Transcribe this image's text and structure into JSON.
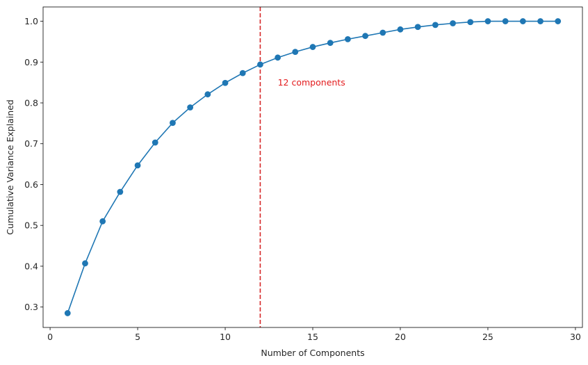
{
  "chart_data": {
    "type": "line",
    "title": "",
    "xlabel": "Number of Components",
    "ylabel": "Cumulative Variance Explained",
    "xlim": [
      -0.4,
      30.4
    ],
    "ylim": [
      0.25,
      1.035
    ],
    "xticks": [
      0,
      5,
      10,
      15,
      20,
      25,
      30
    ],
    "yticks": [
      0.3,
      0.4,
      0.5,
      0.6,
      0.7,
      0.8,
      0.9,
      1.0
    ],
    "xtick_labels": [
      "0",
      "5",
      "10",
      "15",
      "20",
      "25",
      "30"
    ],
    "ytick_labels": [
      "0.3",
      "0.4",
      "0.5",
      "0.6",
      "0.7",
      "0.8",
      "0.9",
      "1.0"
    ],
    "grid": false,
    "series": [
      {
        "color": "#1f77b4",
        "marker": "circle",
        "x": [
          1,
          2,
          3,
          4,
          5,
          6,
          7,
          8,
          9,
          10,
          11,
          12,
          13,
          14,
          15,
          16,
          17,
          18,
          19,
          20,
          21,
          22,
          23,
          24,
          25,
          26,
          27,
          28,
          29
        ],
        "y": [
          0.285,
          0.407,
          0.51,
          0.582,
          0.647,
          0.703,
          0.751,
          0.789,
          0.821,
          0.849,
          0.873,
          0.894,
          0.911,
          0.925,
          0.937,
          0.947,
          0.956,
          0.964,
          0.972,
          0.98,
          0.986,
          0.991,
          0.995,
          0.998,
          1.0,
          1.0,
          1.0,
          1.0,
          1.0
        ]
      }
    ],
    "vline": {
      "x": 12,
      "color": "#d62728",
      "style": "dashed"
    },
    "annotation": {
      "text": "12 components",
      "x": 13,
      "y": 0.85,
      "color": "#e31a1c"
    }
  }
}
